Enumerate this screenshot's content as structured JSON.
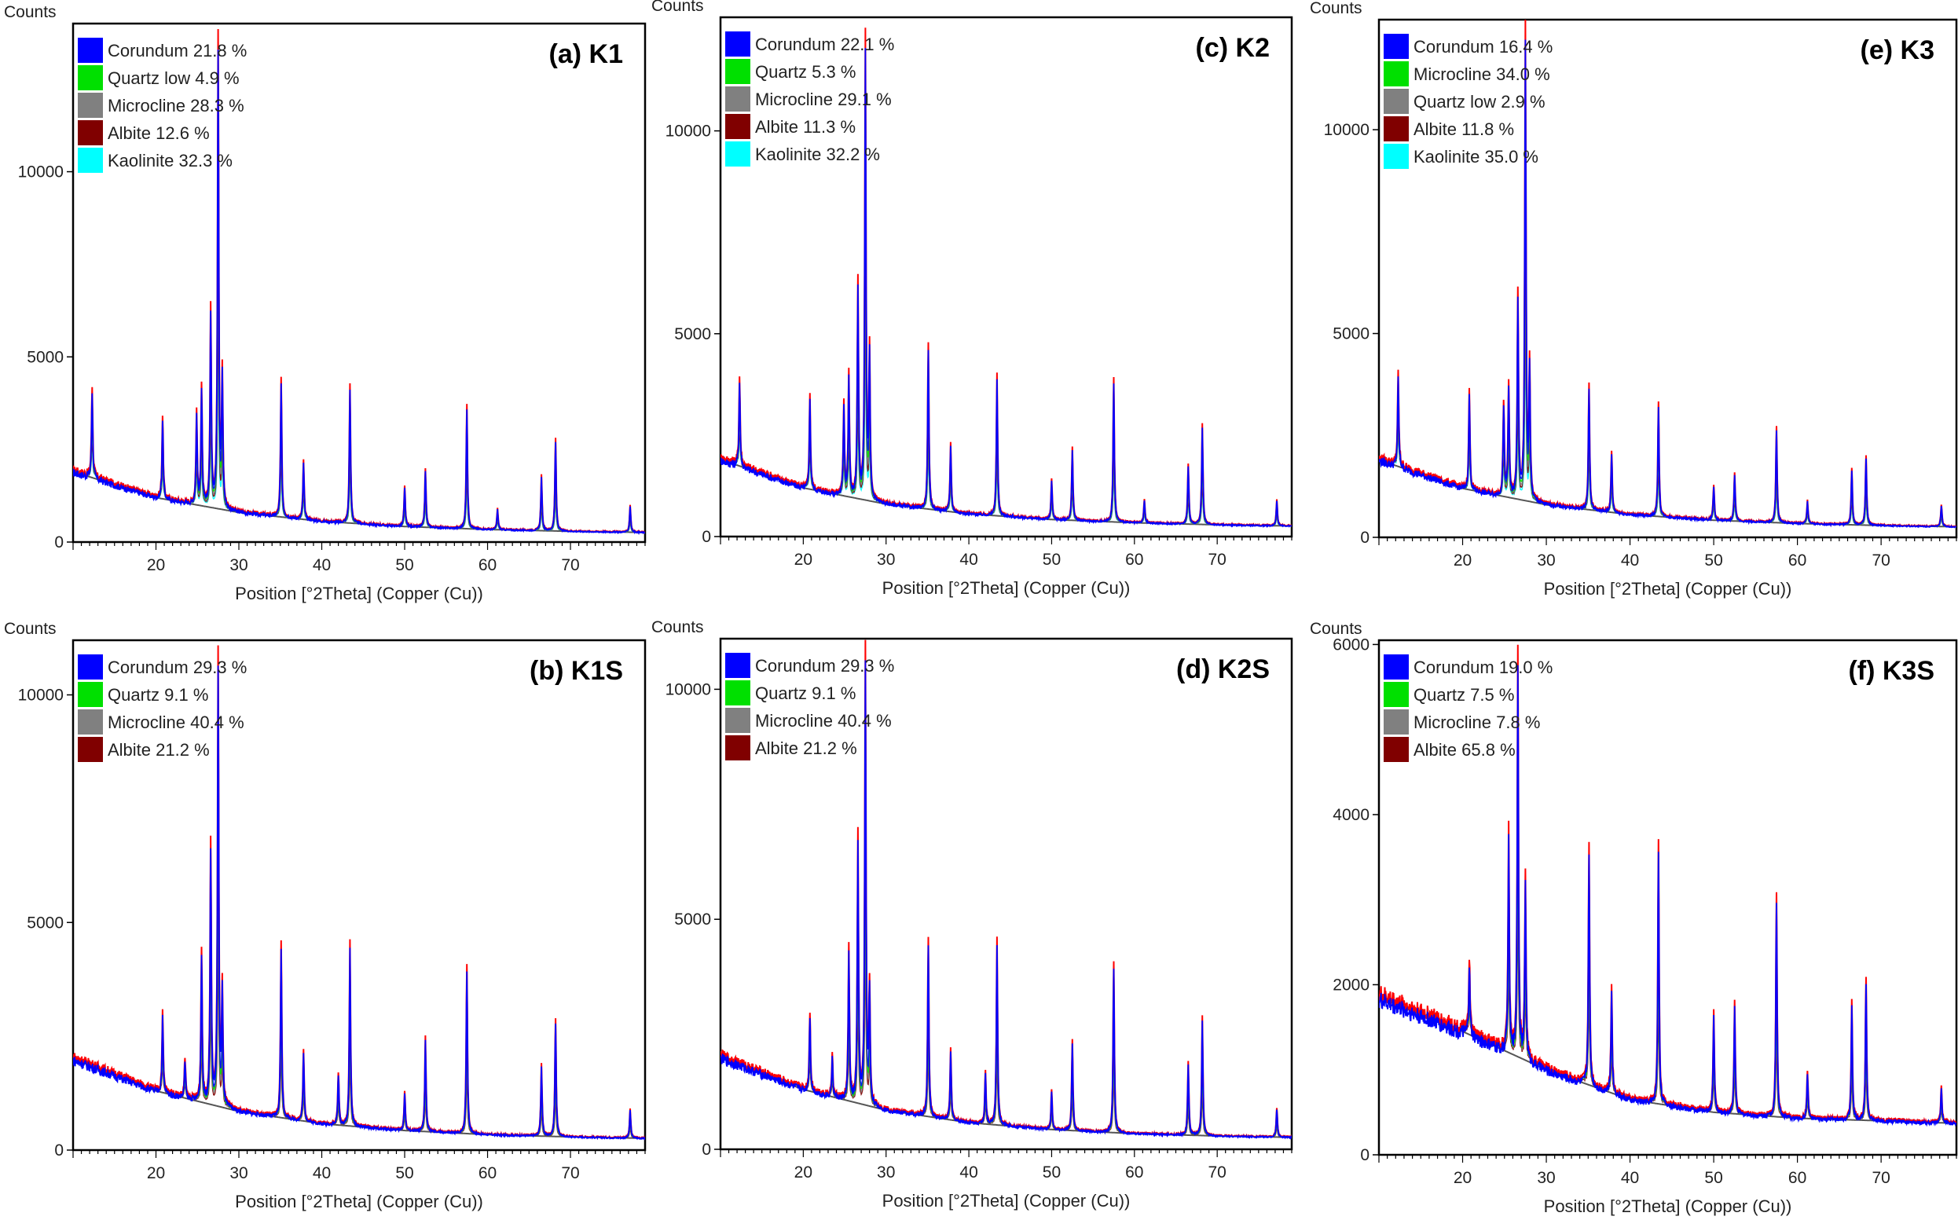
{
  "colors": {
    "corundum": "#0000ff",
    "quartz": "#00cc33",
    "microcline": "#808080",
    "albite": "#800000",
    "kaolinite": "#00e6ff",
    "measured": "#ff0000",
    "background": "#555555"
  },
  "chart_data": [
    {
      "panel": "(a) K1",
      "type": "line",
      "title": "(a) K1",
      "ylabel": "Counts",
      "xlabel": "Position [°2Theta] (Copper (Cu))",
      "xlim": [
        10,
        79
      ],
      "ylim": [
        0,
        14000
      ],
      "xticks": [
        20,
        30,
        40,
        50,
        60,
        70
      ],
      "yticks": [
        0,
        5000,
        10000
      ],
      "legend": [
        {
          "name": "Corundum",
          "value": "21.8 %",
          "color": "#0000ff"
        },
        {
          "name": "Quartz low",
          "value": "4.9 %",
          "color": "#00e000"
        },
        {
          "name": "Microcline",
          "value": "28.3 %",
          "color": "#808080"
        },
        {
          "name": "Albite",
          "value": "12.6 %",
          "color": "#800000"
        },
        {
          "name": "Kaolinite",
          "value": "32.3 %",
          "color": "#00ffff"
        }
      ],
      "background": [
        [
          10,
          1900
        ],
        [
          20,
          1200
        ],
        [
          30,
          800
        ],
        [
          40,
          560
        ],
        [
          50,
          420
        ],
        [
          60,
          340
        ],
        [
          70,
          290
        ],
        [
          79,
          260
        ]
      ],
      "peaks": [
        [
          12.3,
          4200
        ],
        [
          20.8,
          3400
        ],
        [
          24.9,
          3500
        ],
        [
          25.5,
          4200
        ],
        [
          26.6,
          6300
        ],
        [
          27.5,
          13700
        ],
        [
          28.0,
          4500
        ],
        [
          35.1,
          4400
        ],
        [
          37.8,
          2200
        ],
        [
          43.4,
          4300
        ],
        [
          50.0,
          1500
        ],
        [
          52.5,
          2000
        ],
        [
          57.5,
          3700
        ],
        [
          61.2,
          900
        ],
        [
          66.5,
          1800
        ],
        [
          68.2,
          2800
        ],
        [
          77.2,
          1000
        ]
      ]
    },
    {
      "panel": "(c) K2",
      "type": "line",
      "title": "(c) K2",
      "ylabel": "Counts",
      "xlabel": "Position [°2Theta] (Copper (Cu))",
      "xlim": [
        10,
        79
      ],
      "ylim": [
        0,
        12800
      ],
      "xticks": [
        20,
        30,
        40,
        50,
        60,
        70
      ],
      "yticks": [
        0,
        5000,
        10000
      ],
      "legend": [
        {
          "name": "Corundum",
          "value": "22.1 %",
          "color": "#0000ff"
        },
        {
          "name": "Quartz",
          "value": "5.3 %",
          "color": "#00e000"
        },
        {
          "name": "Microcline",
          "value": "29.1 %",
          "color": "#808080"
        },
        {
          "name": "Albite",
          "value": "11.3 %",
          "color": "#800000"
        },
        {
          "name": "Kaolinite",
          "value": "32.2 %",
          "color": "#00ffff"
        }
      ],
      "background": [
        [
          10,
          1900
        ],
        [
          20,
          1200
        ],
        [
          30,
          800
        ],
        [
          40,
          560
        ],
        [
          50,
          420
        ],
        [
          60,
          340
        ],
        [
          70,
          290
        ],
        [
          79,
          260
        ]
      ],
      "peaks": [
        [
          12.3,
          3900
        ],
        [
          20.8,
          3500
        ],
        [
          24.9,
          3300
        ],
        [
          25.5,
          4000
        ],
        [
          26.6,
          6300
        ],
        [
          27.5,
          12300
        ],
        [
          28.0,
          4500
        ],
        [
          35.1,
          4800
        ],
        [
          37.8,
          2300
        ],
        [
          43.4,
          4000
        ],
        [
          50.0,
          1400
        ],
        [
          52.5,
          2200
        ],
        [
          57.5,
          3900
        ],
        [
          61.2,
          900
        ],
        [
          66.5,
          1800
        ],
        [
          68.2,
          2800
        ],
        [
          77.2,
          900
        ]
      ]
    },
    {
      "panel": "(e) K3",
      "type": "line",
      "title": "(e) K3",
      "ylabel": "Counts",
      "xlabel": "Position [°2Theta] (Copper (Cu))",
      "xlim": [
        10,
        79
      ],
      "ylim": [
        0,
        12700
      ],
      "xticks": [
        20,
        30,
        40,
        50,
        60,
        70
      ],
      "yticks": [
        0,
        5000,
        10000
      ],
      "legend": [
        {
          "name": "Corundum",
          "value": "16.4 %",
          "color": "#0000ff"
        },
        {
          "name": "Microcline",
          "value": "34.0 %",
          "color": "#00e000"
        },
        {
          "name": "Quartz low",
          "value": "2.9 %",
          "color": "#808080"
        },
        {
          "name": "Albite",
          "value": "11.8 %",
          "color": "#800000"
        },
        {
          "name": "Kaolinite",
          "value": "35.0 %",
          "color": "#00ffff"
        }
      ],
      "background": [
        [
          10,
          1900
        ],
        [
          20,
          1200
        ],
        [
          30,
          800
        ],
        [
          40,
          560
        ],
        [
          50,
          420
        ],
        [
          60,
          340
        ],
        [
          70,
          290
        ],
        [
          79,
          260
        ]
      ],
      "peaks": [
        [
          12.3,
          4000
        ],
        [
          20.8,
          3600
        ],
        [
          24.9,
          3300
        ],
        [
          25.5,
          3800
        ],
        [
          26.6,
          6000
        ],
        [
          27.5,
          12500
        ],
        [
          28.0,
          4200
        ],
        [
          35.1,
          3800
        ],
        [
          37.8,
          2100
        ],
        [
          43.4,
          3300
        ],
        [
          50.0,
          1300
        ],
        [
          52.5,
          1600
        ],
        [
          57.5,
          2700
        ],
        [
          61.2,
          900
        ],
        [
          66.5,
          1700
        ],
        [
          68.2,
          2000
        ],
        [
          77.2,
          800
        ]
      ]
    },
    {
      "panel": "(b) K1S",
      "type": "line",
      "title": "(b) K1S",
      "ylabel": "Counts",
      "xlabel": "Position [°2Theta] (Copper (Cu))",
      "xlim": [
        10,
        79
      ],
      "ylim": [
        0,
        11200
      ],
      "xticks": [
        20,
        30,
        40,
        50,
        60,
        70
      ],
      "yticks": [
        0,
        5000,
        10000
      ],
      "legend": [
        {
          "name": "Corundum",
          "value": "29.3 %",
          "color": "#0000ff"
        },
        {
          "name": "Quartz",
          "value": "9.1 %",
          "color": "#00e000"
        },
        {
          "name": "Microcline",
          "value": "40.4 %",
          "color": "#808080"
        },
        {
          "name": "Albite",
          "value": "21.2 %",
          "color": "#800000"
        }
      ],
      "background": [
        [
          10,
          2000
        ],
        [
          20,
          1300
        ],
        [
          30,
          850
        ],
        [
          40,
          580
        ],
        [
          50,
          430
        ],
        [
          60,
          340
        ],
        [
          70,
          290
        ],
        [
          79,
          260
        ]
      ],
      "peaks": [
        [
          20.8,
          3000
        ],
        [
          23.5,
          2000
        ],
        [
          25.5,
          4400
        ],
        [
          26.6,
          6800
        ],
        [
          27.5,
          10900
        ],
        [
          28.0,
          3500
        ],
        [
          35.1,
          4600
        ],
        [
          37.8,
          2200
        ],
        [
          42.0,
          1700
        ],
        [
          43.4,
          4600
        ],
        [
          50.0,
          1300
        ],
        [
          52.5,
          2500
        ],
        [
          57.5,
          4100
        ],
        [
          66.5,
          1900
        ],
        [
          68.2,
          2900
        ],
        [
          77.2,
          900
        ]
      ]
    },
    {
      "panel": "(d) K2S",
      "type": "line",
      "title": "(d) K2S",
      "ylabel": "Counts",
      "xlabel": "Position [°2Theta] (Copper (Cu))",
      "xlim": [
        10,
        79
      ],
      "ylim": [
        0,
        11100
      ],
      "xticks": [
        20,
        30,
        40,
        50,
        60,
        70
      ],
      "yticks": [
        0,
        5000,
        10000
      ],
      "legend": [
        {
          "name": "Corundum",
          "value": "29.3 %",
          "color": "#0000ff"
        },
        {
          "name": "Quartz",
          "value": "9.1 %",
          "color": "#00e000"
        },
        {
          "name": "Microcline",
          "value": "40.4 %",
          "color": "#808080"
        },
        {
          "name": "Albite",
          "value": "21.2 %",
          "color": "#800000"
        }
      ],
      "background": [
        [
          10,
          2000
        ],
        [
          20,
          1300
        ],
        [
          30,
          850
        ],
        [
          40,
          580
        ],
        [
          50,
          430
        ],
        [
          60,
          340
        ],
        [
          70,
          290
        ],
        [
          79,
          260
        ]
      ],
      "peaks": [
        [
          20.8,
          3000
        ],
        [
          23.5,
          2000
        ],
        [
          25.5,
          4400
        ],
        [
          26.6,
          6800
        ],
        [
          27.5,
          10900
        ],
        [
          28.0,
          3500
        ],
        [
          35.1,
          4600
        ],
        [
          37.8,
          2200
        ],
        [
          42.0,
          1700
        ],
        [
          43.4,
          4600
        ],
        [
          50.0,
          1300
        ],
        [
          52.5,
          2400
        ],
        [
          57.5,
          4100
        ],
        [
          66.5,
          1900
        ],
        [
          68.2,
          2900
        ],
        [
          77.2,
          900
        ]
      ]
    },
    {
      "panel": "(f) K3S",
      "type": "line",
      "title": "(f) K3S",
      "ylabel": "Counts",
      "xlabel": "Position [°2Theta] (Copper (Cu))",
      "xlim": [
        10,
        79
      ],
      "ylim": [
        0,
        6050
      ],
      "xticks": [
        20,
        30,
        40,
        50,
        60,
        70
      ],
      "yticks": [
        0,
        2000,
        4000,
        6000
      ],
      "legend": [
        {
          "name": "Corundum",
          "value": "19.0 %",
          "color": "#0000ff"
        },
        {
          "name": "Quartz",
          "value": "7.5 %",
          "color": "#00e000"
        },
        {
          "name": "Microcline",
          "value": "7.8 %",
          "color": "#808080"
        },
        {
          "name": "Albite",
          "value": "65.8 %",
          "color": "#800000"
        }
      ],
      "background": [
        [
          10,
          1850
        ],
        [
          20,
          1450
        ],
        [
          30,
          1000
        ],
        [
          40,
          650
        ],
        [
          50,
          500
        ],
        [
          60,
          430
        ],
        [
          70,
          400
        ],
        [
          79,
          370
        ]
      ],
      "peaks": [
        [
          20.8,
          2300
        ],
        [
          25.5,
          3800
        ],
        [
          26.6,
          5900
        ],
        [
          27.5,
          3300
        ],
        [
          35.1,
          3650
        ],
        [
          37.8,
          2000
        ],
        [
          43.4,
          3700
        ],
        [
          50.0,
          1700
        ],
        [
          52.5,
          1800
        ],
        [
          57.5,
          3100
        ],
        [
          61.2,
          1000
        ],
        [
          66.5,
          1800
        ],
        [
          68.2,
          2100
        ],
        [
          77.2,
          800
        ]
      ]
    }
  ]
}
